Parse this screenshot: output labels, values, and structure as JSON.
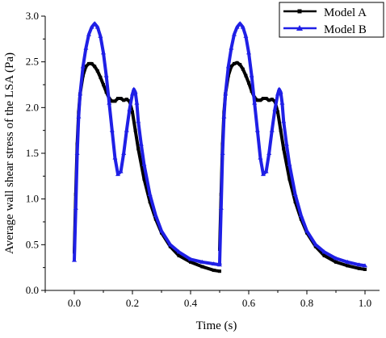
{
  "chart_data": {
    "type": "line",
    "title": "",
    "xlabel": "Time (s)",
    "ylabel": "Average wall shear stress of the LSA (Pa)",
    "xlim": [
      -0.1,
      1.05
    ],
    "ylim": [
      0,
      3.0
    ],
    "xticks": [
      0.0,
      0.2,
      0.4,
      0.6,
      0.8,
      1.0
    ],
    "xtick_labels": [
      "0.0",
      "0.2",
      "0.4",
      "0.6",
      "0.8",
      "1.0"
    ],
    "yticks": [
      0,
      0.5,
      1.0,
      1.5,
      2.0,
      2.5,
      3.0
    ],
    "ytick_labels": [
      "0.0",
      "0.5",
      "1.0",
      "1.5",
      "2.0",
      "2.5",
      "3.0"
    ],
    "legend_position": "top-right",
    "grid": false,
    "series": [
      {
        "name": "Model A",
        "color": "#000000",
        "marker": "square",
        "x": [
          0.0,
          0.005,
          0.01,
          0.015,
          0.02,
          0.03,
          0.04,
          0.05,
          0.06,
          0.07,
          0.08,
          0.09,
          0.1,
          0.11,
          0.12,
          0.13,
          0.14,
          0.15,
          0.16,
          0.17,
          0.18,
          0.19,
          0.2,
          0.21,
          0.22,
          0.24,
          0.26,
          0.28,
          0.3,
          0.33,
          0.36,
          0.4,
          0.44,
          0.48,
          0.5,
          0.5,
          0.505,
          0.51,
          0.515,
          0.52,
          0.53,
          0.54,
          0.55,
          0.56,
          0.57,
          0.58,
          0.59,
          0.6,
          0.61,
          0.62,
          0.63,
          0.64,
          0.65,
          0.66,
          0.67,
          0.68,
          0.69,
          0.7,
          0.71,
          0.72,
          0.74,
          0.76,
          0.78,
          0.8,
          0.83,
          0.86,
          0.9,
          0.94,
          0.98,
          1.0
        ],
        "y": [
          0.42,
          1.05,
          1.6,
          1.95,
          2.15,
          2.35,
          2.45,
          2.48,
          2.48,
          2.45,
          2.4,
          2.33,
          2.25,
          2.17,
          2.1,
          2.07,
          2.07,
          2.1,
          2.1,
          2.08,
          2.09,
          2.07,
          1.95,
          1.75,
          1.55,
          1.22,
          0.97,
          0.78,
          0.63,
          0.48,
          0.38,
          0.31,
          0.26,
          0.22,
          0.21,
          0.45,
          1.05,
          1.6,
          1.95,
          2.15,
          2.35,
          2.45,
          2.48,
          2.49,
          2.47,
          2.42,
          2.35,
          2.27,
          2.18,
          2.11,
          2.08,
          2.08,
          2.1,
          2.1,
          2.08,
          2.09,
          2.07,
          1.95,
          1.75,
          1.55,
          1.22,
          0.97,
          0.78,
          0.63,
          0.48,
          0.38,
          0.31,
          0.27,
          0.24,
          0.23
        ]
      },
      {
        "name": "Model B",
        "color": "#1f1fe6",
        "marker": "triangle",
        "x": [
          0.0,
          0.005,
          0.01,
          0.015,
          0.02,
          0.03,
          0.04,
          0.05,
          0.06,
          0.07,
          0.08,
          0.09,
          0.1,
          0.11,
          0.12,
          0.13,
          0.14,
          0.15,
          0.16,
          0.17,
          0.18,
          0.19,
          0.2,
          0.205,
          0.21,
          0.215,
          0.22,
          0.23,
          0.24,
          0.26,
          0.28,
          0.3,
          0.33,
          0.36,
          0.4,
          0.44,
          0.48,
          0.5,
          0.5,
          0.505,
          0.51,
          0.515,
          0.52,
          0.53,
          0.54,
          0.55,
          0.56,
          0.57,
          0.58,
          0.59,
          0.6,
          0.61,
          0.62,
          0.63,
          0.64,
          0.65,
          0.66,
          0.67,
          0.68,
          0.69,
          0.7,
          0.705,
          0.71,
          0.715,
          0.72,
          0.73,
          0.74,
          0.76,
          0.78,
          0.8,
          0.83,
          0.86,
          0.9,
          0.94,
          0.98,
          1.0
        ],
        "y": [
          0.33,
          0.9,
          1.5,
          1.9,
          2.15,
          2.45,
          2.65,
          2.8,
          2.88,
          2.92,
          2.88,
          2.78,
          2.6,
          2.35,
          2.05,
          1.75,
          1.45,
          1.27,
          1.3,
          1.5,
          1.75,
          1.98,
          2.15,
          2.2,
          2.17,
          2.05,
          1.85,
          1.6,
          1.38,
          1.05,
          0.82,
          0.65,
          0.5,
          0.42,
          0.34,
          0.31,
          0.29,
          0.28,
          0.3,
          0.9,
          1.5,
          1.9,
          2.15,
          2.45,
          2.65,
          2.8,
          2.88,
          2.92,
          2.88,
          2.78,
          2.6,
          2.35,
          2.05,
          1.75,
          1.45,
          1.27,
          1.3,
          1.5,
          1.75,
          1.98,
          2.15,
          2.2,
          2.17,
          2.05,
          1.85,
          1.6,
          1.38,
          1.05,
          0.82,
          0.65,
          0.5,
          0.42,
          0.35,
          0.31,
          0.28,
          0.27
        ]
      }
    ]
  }
}
